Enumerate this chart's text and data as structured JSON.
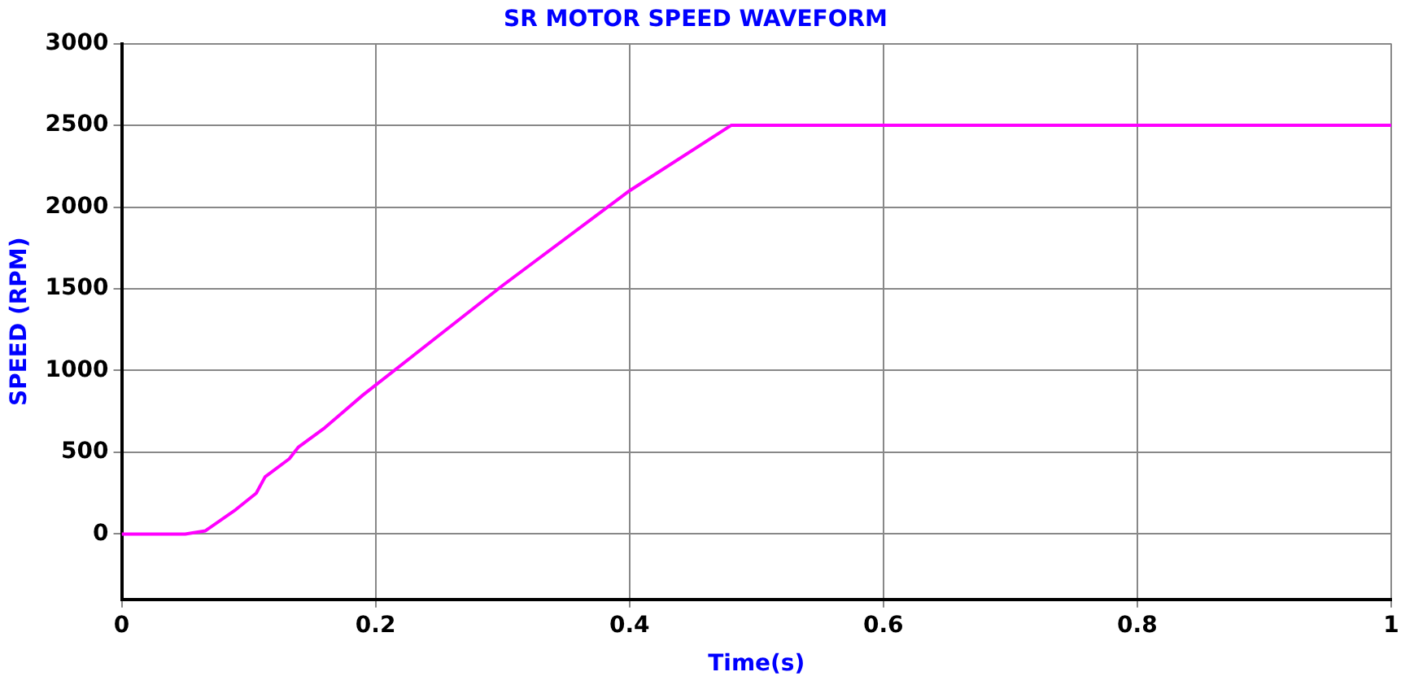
{
  "chart_data": {
    "type": "line",
    "title": "SR MOTOR SPEED WAVEFORM",
    "xlabel": "Time(s)",
    "ylabel": "SPEED (RPM)",
    "x": [
      0,
      0.05,
      0.066,
      0.09,
      0.106,
      0.113,
      0.132,
      0.139,
      0.16,
      0.19,
      0.3,
      0.4,
      0.48,
      1
    ],
    "series": [
      {
        "color": "#ff00ff",
        "values": [
          0,
          0,
          20,
          150,
          250,
          350,
          460,
          530,
          650,
          850,
          1520,
          2100,
          2500,
          2500
        ]
      }
    ],
    "xlim": [
      0,
      1
    ],
    "xticks": [
      0,
      0.2,
      0.4,
      0.6,
      0.8,
      1
    ],
    "ylim": [
      -400,
      3000
    ],
    "yticks": [
      0,
      500,
      1000,
      1500,
      2000,
      2500,
      3000
    ],
    "grid": true,
    "legend": false,
    "marker": "none",
    "line_style": "solid"
  }
}
